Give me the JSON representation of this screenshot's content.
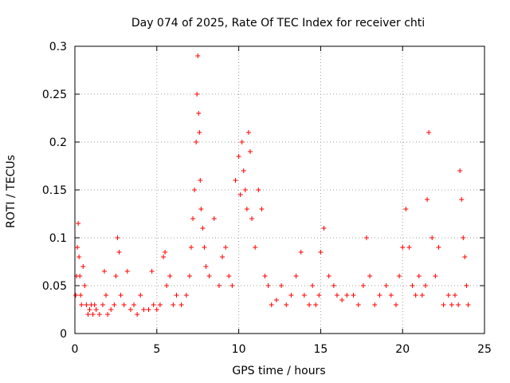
{
  "chart_data": {
    "type": "scatter",
    "title": "Day 074 of 2025, Rate Of TEC Index for receiver chti",
    "xlabel": "GPS time / hours",
    "ylabel": "ROTI / TECUs",
    "xlim": [
      0,
      25
    ],
    "ylim": [
      0,
      0.3
    ],
    "xticks": [
      0,
      5,
      10,
      15,
      20,
      25
    ],
    "yticks": [
      0,
      0.05,
      0.1,
      0.15,
      0.2,
      0.25,
      0.3
    ],
    "xtick_labels": [
      "0",
      "5",
      "10",
      "15",
      "20",
      "25"
    ],
    "ytick_labels": [
      "0",
      "0.05",
      "0.1",
      "0.15",
      "0.2",
      "0.25",
      "0.3"
    ],
    "grid": true,
    "marker": "+",
    "series": [
      {
        "name": "ROTI",
        "color": "#ff0000",
        "x": [
          0.05,
          0.1,
          0.15,
          0.2,
          0.25,
          0.3,
          0.35,
          0.4,
          0.5,
          0.6,
          0.7,
          0.8,
          0.9,
          1.0,
          1.1,
          1.2,
          1.3,
          1.5,
          1.7,
          1.8,
          1.9,
          2.0,
          2.2,
          2.4,
          2.5,
          2.6,
          2.7,
          2.8,
          3.0,
          3.2,
          3.4,
          3.6,
          3.8,
          4.0,
          4.2,
          4.5,
          4.7,
          4.8,
          5.0,
          5.2,
          5.4,
          5.5,
          5.6,
          5.8,
          6.0,
          6.2,
          6.5,
          6.8,
          7.0,
          7.1,
          7.2,
          7.3,
          7.4,
          7.45,
          7.5,
          7.55,
          7.6,
          7.65,
          7.7,
          7.8,
          7.9,
          8.0,
          8.2,
          8.5,
          8.8,
          9.0,
          9.2,
          9.4,
          9.6,
          9.8,
          10.0,
          10.1,
          10.2,
          10.3,
          10.4,
          10.5,
          10.6,
          10.7,
          10.8,
          11.0,
          11.2,
          11.4,
          11.6,
          11.8,
          12.0,
          12.3,
          12.6,
          12.9,
          13.2,
          13.5,
          13.8,
          14.0,
          14.3,
          14.5,
          14.7,
          14.9,
          15.0,
          15.2,
          15.5,
          15.8,
          16.0,
          16.3,
          16.6,
          17.0,
          17.3,
          17.6,
          17.8,
          18.0,
          18.3,
          18.6,
          19.0,
          19.3,
          19.6,
          19.8,
          20.0,
          20.2,
          20.4,
          20.6,
          20.8,
          21.0,
          21.2,
          21.4,
          21.5,
          21.6,
          21.8,
          22.0,
          22.2,
          22.5,
          22.8,
          23.0,
          23.2,
          23.4,
          23.5,
          23.6,
          23.7,
          23.8,
          23.9,
          24.0
        ],
        "y": [
          0.04,
          0.06,
          0.09,
          0.115,
          0.08,
          0.06,
          0.04,
          0.03,
          0.07,
          0.05,
          0.03,
          0.02,
          0.025,
          0.03,
          0.02,
          0.03,
          0.025,
          0.02,
          0.03,
          0.065,
          0.04,
          0.02,
          0.025,
          0.03,
          0.06,
          0.1,
          0.085,
          0.04,
          0.03,
          0.065,
          0.025,
          0.03,
          0.02,
          0.04,
          0.025,
          0.025,
          0.065,
          0.03,
          0.025,
          0.03,
          0.08,
          0.085,
          0.05,
          0.06,
          0.03,
          0.04,
          0.03,
          0.04,
          0.06,
          0.09,
          0.12,
          0.15,
          0.2,
          0.25,
          0.29,
          0.23,
          0.21,
          0.16,
          0.13,
          0.11,
          0.09,
          0.07,
          0.06,
          0.12,
          0.05,
          0.08,
          0.09,
          0.06,
          0.05,
          0.16,
          0.185,
          0.145,
          0.2,
          0.17,
          0.15,
          0.13,
          0.21,
          0.19,
          0.12,
          0.09,
          0.15,
          0.13,
          0.06,
          0.05,
          0.03,
          0.035,
          0.05,
          0.03,
          0.04,
          0.06,
          0.085,
          0.04,
          0.03,
          0.05,
          0.03,
          0.04,
          0.085,
          0.11,
          0.06,
          0.05,
          0.04,
          0.035,
          0.04,
          0.04,
          0.03,
          0.05,
          0.1,
          0.06,
          0.03,
          0.04,
          0.05,
          0.04,
          0.03,
          0.06,
          0.09,
          0.13,
          0.09,
          0.05,
          0.04,
          0.06,
          0.04,
          0.05,
          0.14,
          0.21,
          0.1,
          0.06,
          0.09,
          0.03,
          0.04,
          0.03,
          0.04,
          0.03,
          0.17,
          0.14,
          0.1,
          0.08,
          0.05,
          0.03
        ]
      }
    ]
  }
}
